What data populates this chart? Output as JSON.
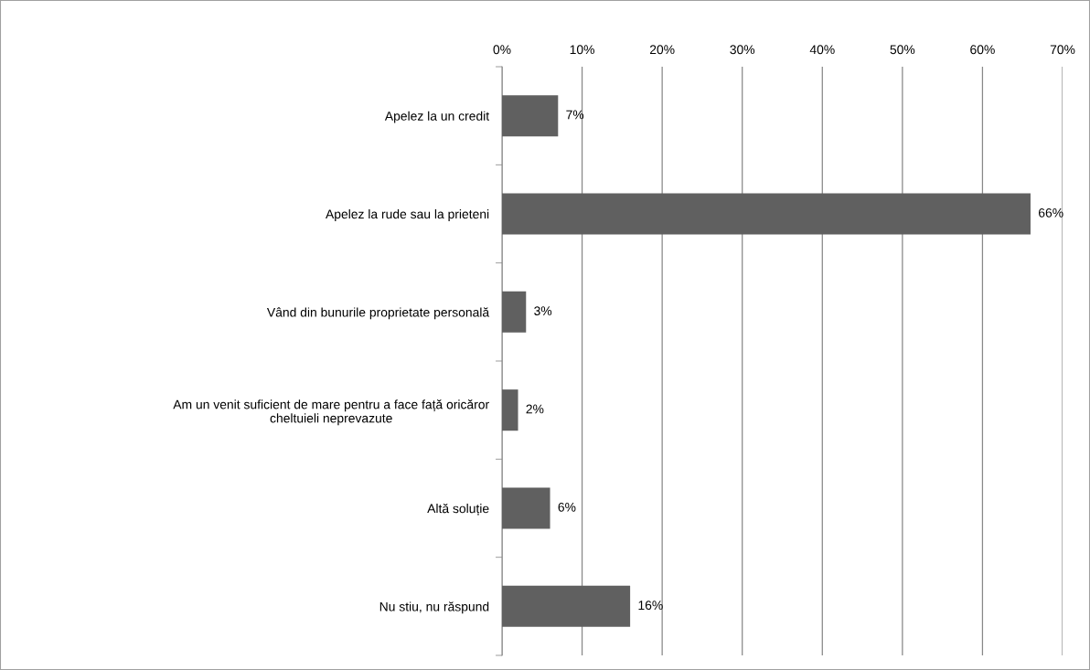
{
  "chart_data": {
    "type": "bar",
    "orientation": "horizontal",
    "categories": [
      "Apelez la un credit",
      "Apelez la rude sau la prieteni",
      "Vând din bunurile proprietate personală",
      "Am un venit suficient de mare pentru a face față oricăror\ncheltuieli neprevazute",
      "Altă soluție",
      "Nu stiu, nu răspund"
    ],
    "values": [
      7,
      66,
      3,
      2,
      6,
      16
    ],
    "value_labels": [
      "7%",
      "66%",
      "3%",
      "2%",
      "6%",
      "16%"
    ],
    "color": "#606060",
    "xlim": [
      0,
      70
    ],
    "xticks": [
      {
        "value": 0,
        "label": "0%"
      },
      {
        "value": 10,
        "label": "10%"
      },
      {
        "value": 20,
        "label": "20%"
      },
      {
        "value": 30,
        "label": "30%"
      },
      {
        "value": 40,
        "label": "40%"
      },
      {
        "value": 50,
        "label": "50%"
      },
      {
        "value": 60,
        "label": "60%"
      },
      {
        "value": 70,
        "label": "70%"
      }
    ],
    "grid": "x",
    "legend": false
  }
}
